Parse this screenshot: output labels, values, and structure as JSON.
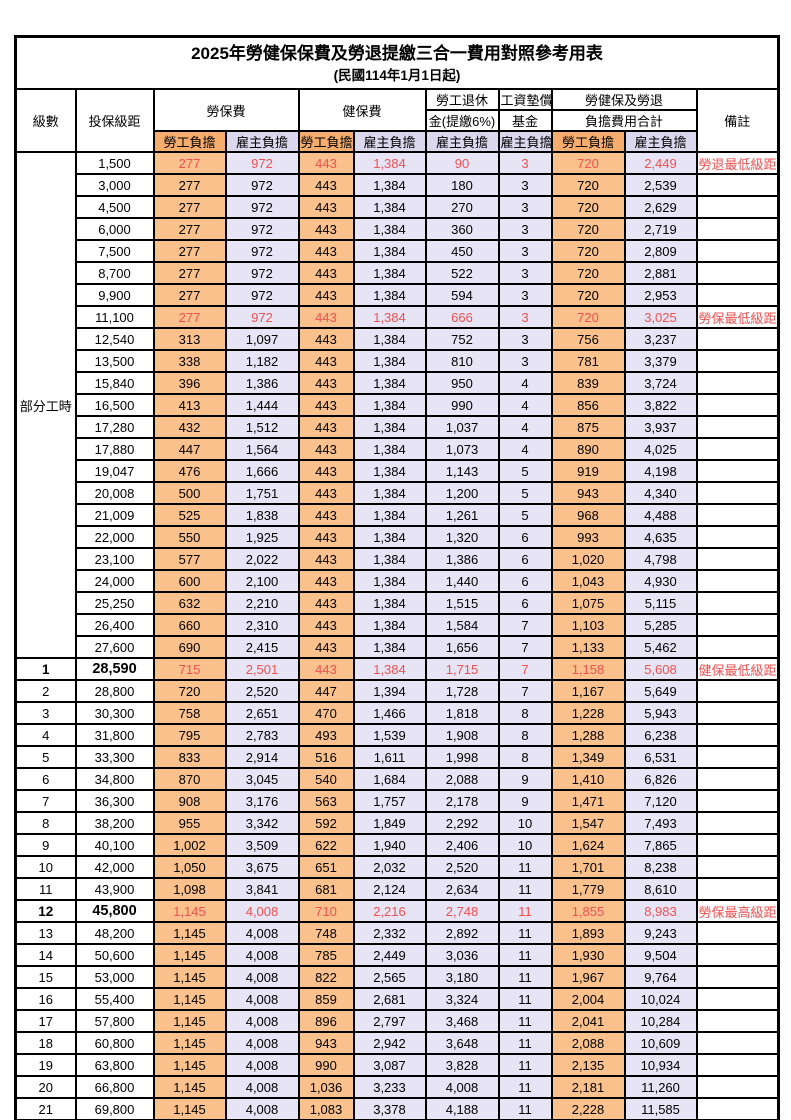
{
  "title": "2025年勞健保保費及勞退提繳三合一費用對照參考用表",
  "subtitle": "(民國114年1月1日起)",
  "colors": {
    "employee_col_bg": "#FAC18C",
    "employee_header_bg": "#F5AD6E",
    "employer_col_bg": "#E6E4F5",
    "employer_header_bg": "#DBD8EE",
    "highlight_red": "#EE5252",
    "border": "#000000"
  },
  "header": {
    "level": "級數",
    "bracket": "投保級距",
    "labor_ins": "勞保費",
    "health_ins": "健保費",
    "pension_line1": "勞工退休",
    "pension_line2": "金(提繳6%)",
    "wage_fund_line1": "工資墊償",
    "wage_fund_line2": "基金",
    "total_line1": "勞健保及勞退",
    "total_line2": "負擔費用合計",
    "employee": "勞工負擔",
    "employer": "雇主負擔",
    "remark": "備註"
  },
  "table": {
    "group": {
      "label": "部分工時",
      "span": 23
    },
    "columns": [
      "級數",
      "投保級距",
      "勞保費-勞工負擔",
      "勞保費-雇主負擔",
      "健保費-勞工負擔",
      "健保費-雇主負擔",
      "勞工退休金(提繳6%)-雇主負擔",
      "工資墊償基金-雇主負擔",
      "勞健保及勞退負擔費用合計-勞工負擔",
      "勞健保及勞退負擔費用合計-雇主負擔",
      "備註"
    ],
    "rows": [
      {
        "level": "",
        "bracket": "1,500",
        "c": [
          "277",
          "972",
          "443",
          "1,384",
          "90",
          "3",
          "720",
          "2,449"
        ],
        "remark": "勞退最低級距",
        "red": true
      },
      {
        "level": "",
        "bracket": "3,000",
        "c": [
          "277",
          "972",
          "443",
          "1,384",
          "180",
          "3",
          "720",
          "2,539"
        ],
        "remark": ""
      },
      {
        "level": "",
        "bracket": "4,500",
        "c": [
          "277",
          "972",
          "443",
          "1,384",
          "270",
          "3",
          "720",
          "2,629"
        ],
        "remark": ""
      },
      {
        "level": "",
        "bracket": "6,000",
        "c": [
          "277",
          "972",
          "443",
          "1,384",
          "360",
          "3",
          "720",
          "2,719"
        ],
        "remark": ""
      },
      {
        "level": "",
        "bracket": "7,500",
        "c": [
          "277",
          "972",
          "443",
          "1,384",
          "450",
          "3",
          "720",
          "2,809"
        ],
        "remark": ""
      },
      {
        "level": "",
        "bracket": "8,700",
        "c": [
          "277",
          "972",
          "443",
          "1,384",
          "522",
          "3",
          "720",
          "2,881"
        ],
        "remark": ""
      },
      {
        "level": "",
        "bracket": "9,900",
        "c": [
          "277",
          "972",
          "443",
          "1,384",
          "594",
          "3",
          "720",
          "2,953"
        ],
        "remark": ""
      },
      {
        "level": "",
        "bracket": "11,100",
        "c": [
          "277",
          "972",
          "443",
          "1,384",
          "666",
          "3",
          "720",
          "3,025"
        ],
        "remark": "勞保最低級距",
        "red": true
      },
      {
        "level": "",
        "bracket": "12,540",
        "c": [
          "313",
          "1,097",
          "443",
          "1,384",
          "752",
          "3",
          "756",
          "3,237"
        ],
        "remark": ""
      },
      {
        "level": "",
        "bracket": "13,500",
        "c": [
          "338",
          "1,182",
          "443",
          "1,384",
          "810",
          "3",
          "781",
          "3,379"
        ],
        "remark": ""
      },
      {
        "level": "",
        "bracket": "15,840",
        "c": [
          "396",
          "1,386",
          "443",
          "1,384",
          "950",
          "4",
          "839",
          "3,724"
        ],
        "remark": ""
      },
      {
        "level": "",
        "bracket": "16,500",
        "c": [
          "413",
          "1,444",
          "443",
          "1,384",
          "990",
          "4",
          "856",
          "3,822"
        ],
        "remark": ""
      },
      {
        "level": "",
        "bracket": "17,280",
        "c": [
          "432",
          "1,512",
          "443",
          "1,384",
          "1,037",
          "4",
          "875",
          "3,937"
        ],
        "remark": ""
      },
      {
        "level": "",
        "bracket": "17,880",
        "c": [
          "447",
          "1,564",
          "443",
          "1,384",
          "1,073",
          "4",
          "890",
          "4,025"
        ],
        "remark": ""
      },
      {
        "level": "",
        "bracket": "19,047",
        "c": [
          "476",
          "1,666",
          "443",
          "1,384",
          "1,143",
          "5",
          "919",
          "4,198"
        ],
        "remark": ""
      },
      {
        "level": "",
        "bracket": "20,008",
        "c": [
          "500",
          "1,751",
          "443",
          "1,384",
          "1,200",
          "5",
          "943",
          "4,340"
        ],
        "remark": ""
      },
      {
        "level": "",
        "bracket": "21,009",
        "c": [
          "525",
          "1,838",
          "443",
          "1,384",
          "1,261",
          "5",
          "968",
          "4,488"
        ],
        "remark": ""
      },
      {
        "level": "",
        "bracket": "22,000",
        "c": [
          "550",
          "1,925",
          "443",
          "1,384",
          "1,320",
          "6",
          "993",
          "4,635"
        ],
        "remark": ""
      },
      {
        "level": "",
        "bracket": "23,100",
        "c": [
          "577",
          "2,022",
          "443",
          "1,384",
          "1,386",
          "6",
          "1,020",
          "4,798"
        ],
        "remark": ""
      },
      {
        "level": "",
        "bracket": "24,000",
        "c": [
          "600",
          "2,100",
          "443",
          "1,384",
          "1,440",
          "6",
          "1,043",
          "4,930"
        ],
        "remark": ""
      },
      {
        "level": "",
        "bracket": "25,250",
        "c": [
          "632",
          "2,210",
          "443",
          "1,384",
          "1,515",
          "6",
          "1,075",
          "5,115"
        ],
        "remark": ""
      },
      {
        "level": "",
        "bracket": "26,400",
        "c": [
          "660",
          "2,310",
          "443",
          "1,384",
          "1,584",
          "7",
          "1,103",
          "5,285"
        ],
        "remark": ""
      },
      {
        "level": "",
        "bracket": "27,600",
        "c": [
          "690",
          "2,415",
          "443",
          "1,384",
          "1,656",
          "7",
          "1,133",
          "5,462"
        ],
        "remark": ""
      },
      {
        "level": "1",
        "bracket": "28,590",
        "c": [
          "715",
          "2,501",
          "443",
          "1,384",
          "1,715",
          "7",
          "1,158",
          "5,608"
        ],
        "remark": "健保最低級距",
        "red": true,
        "bold": true
      },
      {
        "level": "2",
        "bracket": "28,800",
        "c": [
          "720",
          "2,520",
          "447",
          "1,394",
          "1,728",
          "7",
          "1,167",
          "5,649"
        ],
        "remark": ""
      },
      {
        "level": "3",
        "bracket": "30,300",
        "c": [
          "758",
          "2,651",
          "470",
          "1,466",
          "1,818",
          "8",
          "1,228",
          "5,943"
        ],
        "remark": ""
      },
      {
        "level": "4",
        "bracket": "31,800",
        "c": [
          "795",
          "2,783",
          "493",
          "1,539",
          "1,908",
          "8",
          "1,288",
          "6,238"
        ],
        "remark": ""
      },
      {
        "level": "5",
        "bracket": "33,300",
        "c": [
          "833",
          "2,914",
          "516",
          "1,611",
          "1,998",
          "8",
          "1,349",
          "6,531"
        ],
        "remark": ""
      },
      {
        "level": "6",
        "bracket": "34,800",
        "c": [
          "870",
          "3,045",
          "540",
          "1,684",
          "2,088",
          "9",
          "1,410",
          "6,826"
        ],
        "remark": ""
      },
      {
        "level": "7",
        "bracket": "36,300",
        "c": [
          "908",
          "3,176",
          "563",
          "1,757",
          "2,178",
          "9",
          "1,471",
          "7,120"
        ],
        "remark": ""
      },
      {
        "level": "8",
        "bracket": "38,200",
        "c": [
          "955",
          "3,342",
          "592",
          "1,849",
          "2,292",
          "10",
          "1,547",
          "7,493"
        ],
        "remark": ""
      },
      {
        "level": "9",
        "bracket": "40,100",
        "c": [
          "1,002",
          "3,509",
          "622",
          "1,940",
          "2,406",
          "10",
          "1,624",
          "7,865"
        ],
        "remark": ""
      },
      {
        "level": "10",
        "bracket": "42,000",
        "c": [
          "1,050",
          "3,675",
          "651",
          "2,032",
          "2,520",
          "11",
          "1,701",
          "8,238"
        ],
        "remark": ""
      },
      {
        "level": "11",
        "bracket": "43,900",
        "c": [
          "1,098",
          "3,841",
          "681",
          "2,124",
          "2,634",
          "11",
          "1,779",
          "8,610"
        ],
        "remark": ""
      },
      {
        "level": "12",
        "bracket": "45,800",
        "c": [
          "1,145",
          "4,008",
          "710",
          "2,216",
          "2,748",
          "11",
          "1,855",
          "8,983"
        ],
        "remark": "勞保最高級距",
        "red": true,
        "bold": true
      },
      {
        "level": "13",
        "bracket": "48,200",
        "c": [
          "1,145",
          "4,008",
          "748",
          "2,332",
          "2,892",
          "11",
          "1,893",
          "9,243"
        ],
        "remark": ""
      },
      {
        "level": "14",
        "bracket": "50,600",
        "c": [
          "1,145",
          "4,008",
          "785",
          "2,449",
          "3,036",
          "11",
          "1,930",
          "9,504"
        ],
        "remark": ""
      },
      {
        "level": "15",
        "bracket": "53,000",
        "c": [
          "1,145",
          "4,008",
          "822",
          "2,565",
          "3,180",
          "11",
          "1,967",
          "9,764"
        ],
        "remark": ""
      },
      {
        "level": "16",
        "bracket": "55,400",
        "c": [
          "1,145",
          "4,008",
          "859",
          "2,681",
          "3,324",
          "11",
          "2,004",
          "10,024"
        ],
        "remark": ""
      },
      {
        "level": "17",
        "bracket": "57,800",
        "c": [
          "1,145",
          "4,008",
          "896",
          "2,797",
          "3,468",
          "11",
          "2,041",
          "10,284"
        ],
        "remark": ""
      },
      {
        "level": "18",
        "bracket": "60,800",
        "c": [
          "1,145",
          "4,008",
          "943",
          "2,942",
          "3,648",
          "11",
          "2,088",
          "10,609"
        ],
        "remark": ""
      },
      {
        "level": "19",
        "bracket": "63,800",
        "c": [
          "1,145",
          "4,008",
          "990",
          "3,087",
          "3,828",
          "11",
          "2,135",
          "10,934"
        ],
        "remark": ""
      },
      {
        "level": "20",
        "bracket": "66,800",
        "c": [
          "1,145",
          "4,008",
          "1,036",
          "3,233",
          "4,008",
          "11",
          "2,181",
          "11,260"
        ],
        "remark": ""
      },
      {
        "level": "21",
        "bracket": "69,800",
        "c": [
          "1,145",
          "4,008",
          "1,083",
          "3,378",
          "4,188",
          "11",
          "2,228",
          "11,585"
        ],
        "remark": ""
      }
    ]
  }
}
